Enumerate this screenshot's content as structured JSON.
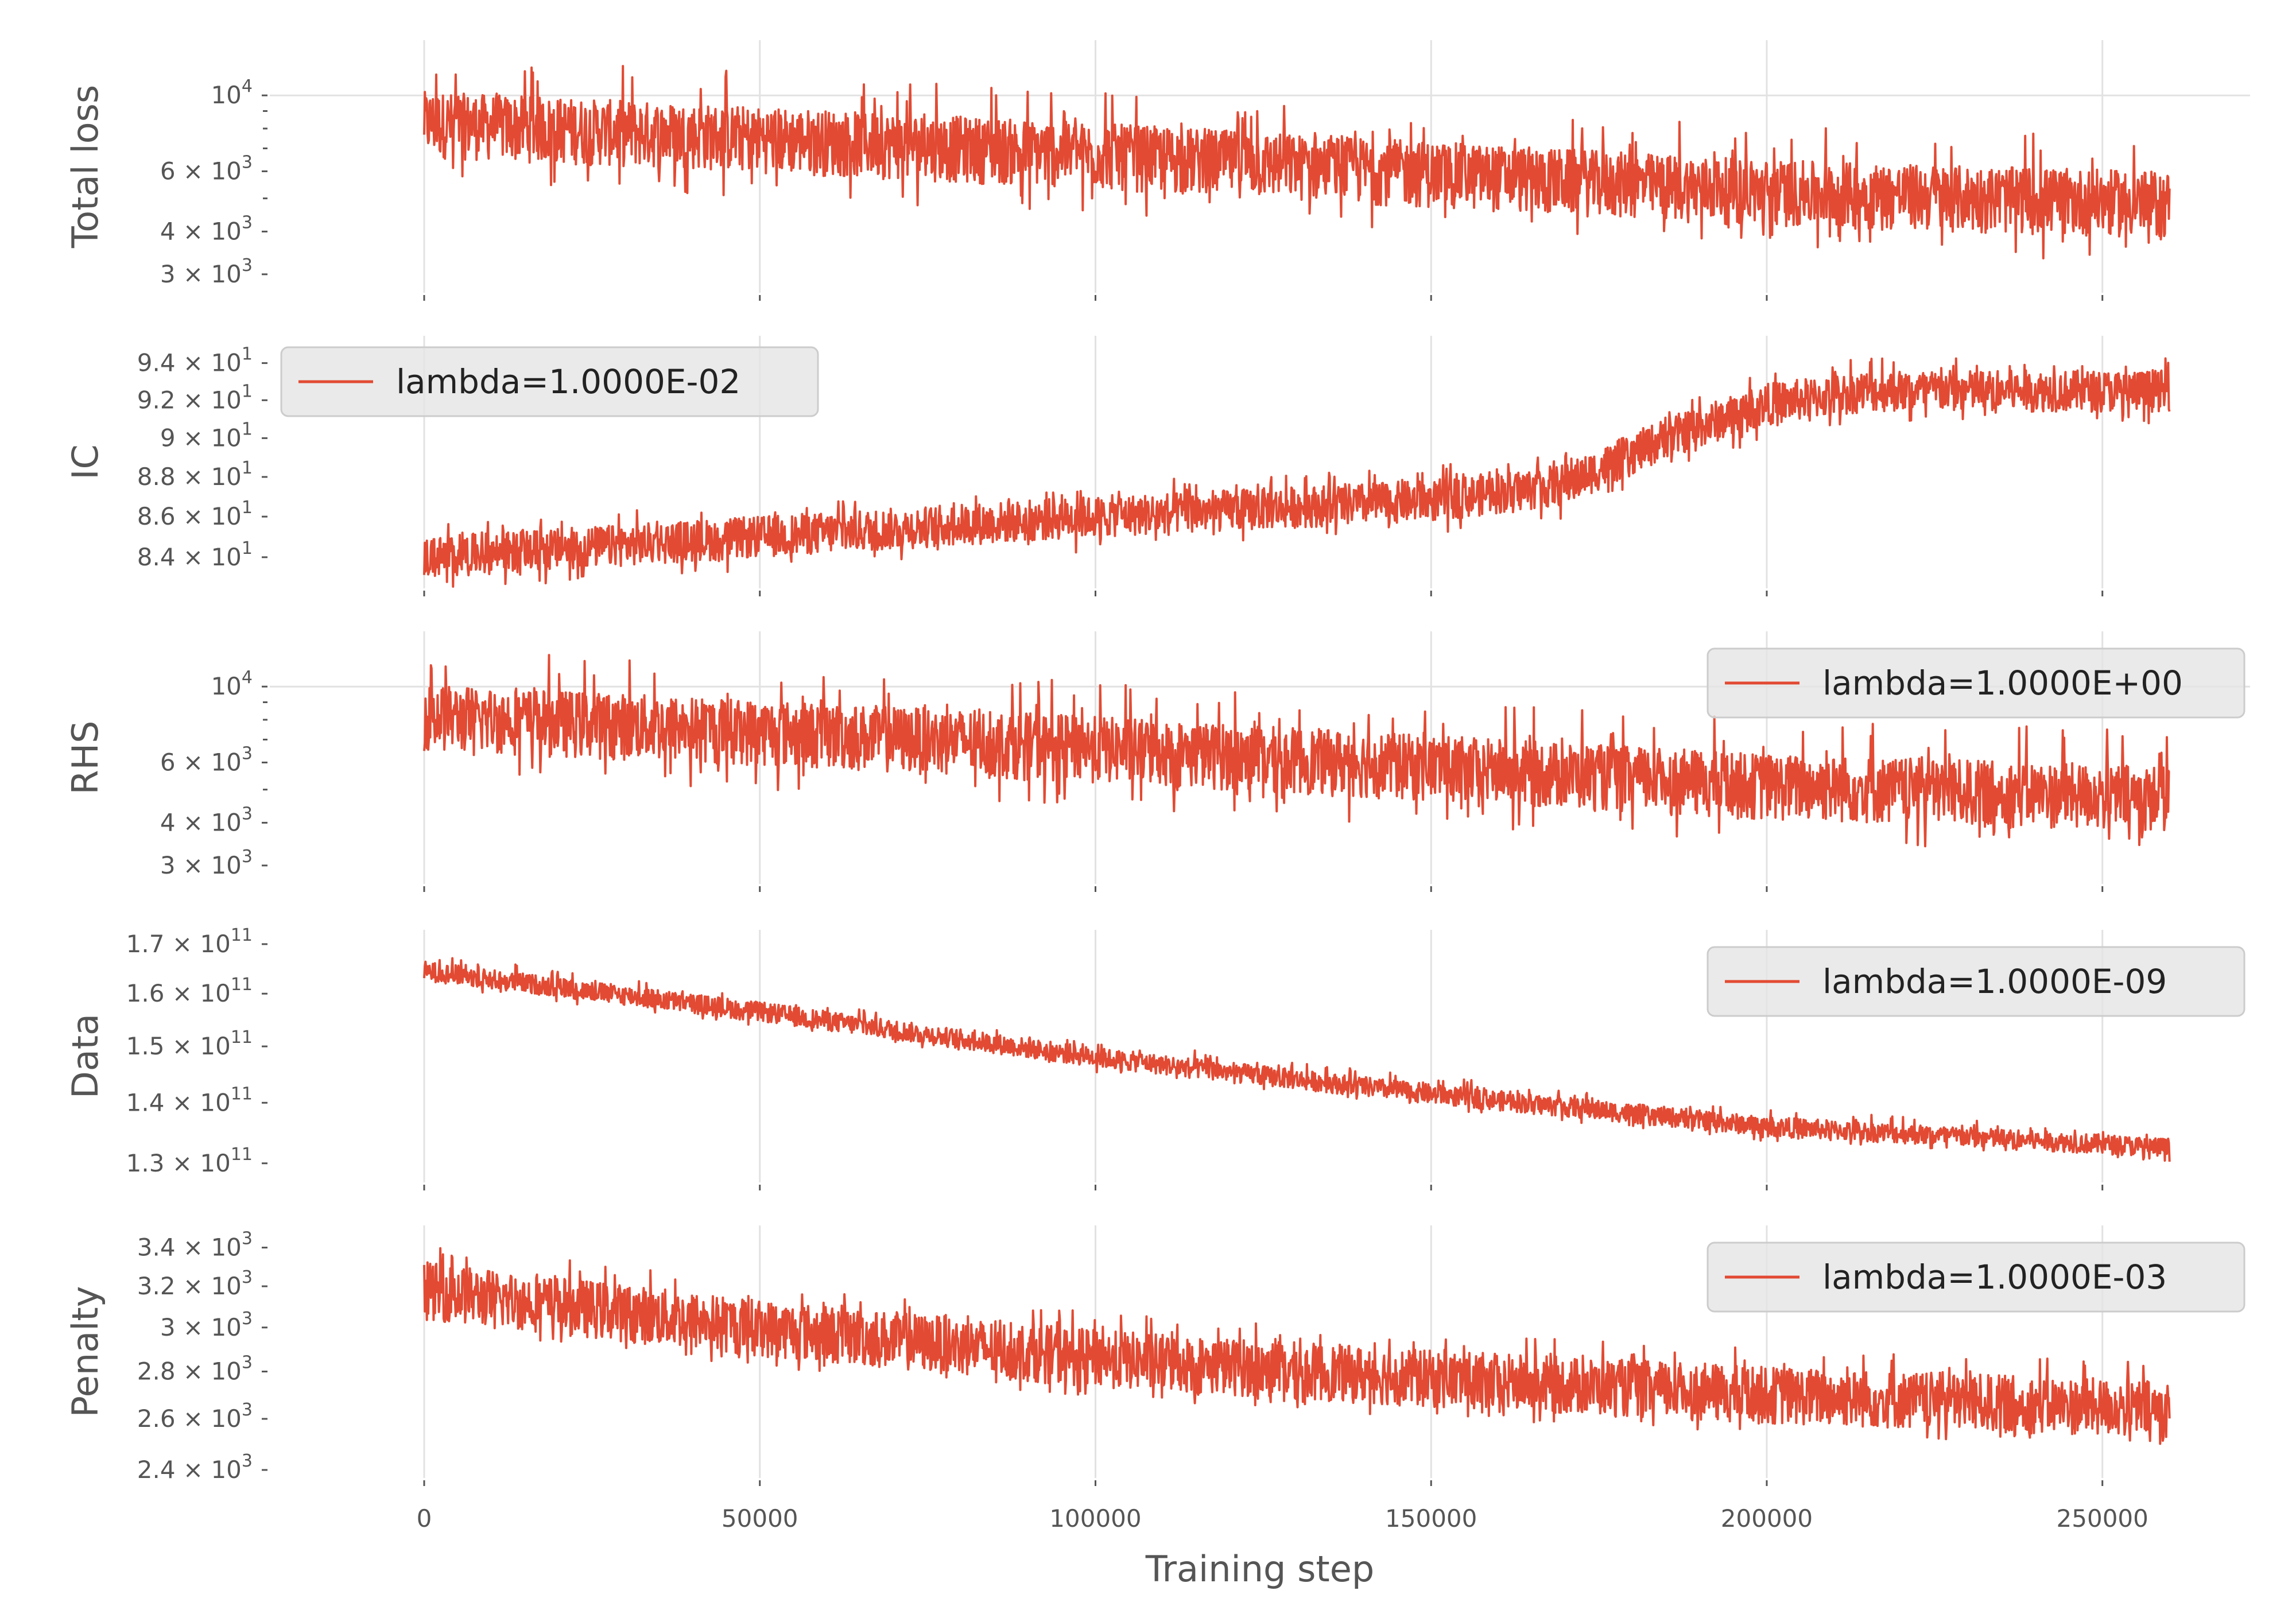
{
  "chart_data": {
    "type": "line",
    "layout": "5 stacked subplots sharing the x axis",
    "xlabel": "Training step",
    "xlim": [
      -23000,
      272000
    ],
    "xticks": [
      0,
      50000,
      100000,
      150000,
      200000,
      250000
    ],
    "xtick_labels": [
      "0",
      "50000",
      "100000",
      "150000",
      "200000",
      "250000"
    ],
    "total_steps": 260000,
    "series_color": "#E24A33",
    "grid": true,
    "subplots": [
      {
        "id": "total_loss",
        "ylabel": "Total loss",
        "yscale": "log",
        "ylim": [
          2650,
          14500
        ],
        "yticks": [
          {
            "value": 10000,
            "base": "10",
            "exp": "4",
            "mant": ""
          },
          {
            "value": 6000,
            "base": "10",
            "exp": "3",
            "mant": "6 × "
          },
          {
            "value": 4000,
            "base": "10",
            "exp": "3",
            "mant": "4 × "
          },
          {
            "value": 3000,
            "base": "10",
            "exp": "3",
            "mant": "3 × "
          }
        ],
        "minor_ticks": [
          5000,
          7000,
          8000,
          9000
        ],
        "legend": null,
        "trend": [
          [
            0,
            8400
          ],
          [
            50000,
            7600
          ],
          [
            100000,
            6800
          ],
          [
            150000,
            6000
          ],
          [
            200000,
            5300
          ],
          [
            260000,
            4900
          ]
        ],
        "band": {
          "low": 0.78,
          "high": 1.22,
          "spike_high": 1.55,
          "spike_low": 0.66
        }
      },
      {
        "id": "ic",
        "ylabel": "IC",
        "yscale": "log",
        "ylim": [
          82.5,
          95.5
        ],
        "yticks": [
          {
            "value": 94,
            "base": "10",
            "exp": "1",
            "mant": "9.4 × "
          },
          {
            "value": 92,
            "base": "10",
            "exp": "1",
            "mant": "9.2 × "
          },
          {
            "value": 90,
            "base": "10",
            "exp": "1",
            "mant": "9 × "
          },
          {
            "value": 88,
            "base": "10",
            "exp": "1",
            "mant": "8.8 × "
          },
          {
            "value": 86,
            "base": "10",
            "exp": "1",
            "mant": "8.6 × "
          },
          {
            "value": 84,
            "base": "10",
            "exp": "1",
            "mant": "8.4 × "
          }
        ],
        "minor_ticks": [],
        "legend": {
          "label": "lambda=1.0000E-02",
          "position": "upper left"
        },
        "trend": [
          [
            0,
            84.0
          ],
          [
            50000,
            85.0
          ],
          [
            100000,
            86.0
          ],
          [
            150000,
            86.8
          ],
          [
            170000,
            87.6
          ],
          [
            185000,
            90.0
          ],
          [
            200000,
            91.8
          ],
          [
            215000,
            92.5
          ],
          [
            260000,
            92.5
          ]
        ],
        "band": {
          "low": 0.988,
          "high": 1.012,
          "spike_high": 1.02,
          "spike_low": 0.98
        }
      },
      {
        "id": "rhs",
        "ylabel": "RHS",
        "yscale": "log",
        "ylim": [
          2650,
          14500
        ],
        "yticks": [
          {
            "value": 10000,
            "base": "10",
            "exp": "4",
            "mant": ""
          },
          {
            "value": 6000,
            "base": "10",
            "exp": "3",
            "mant": "6 × "
          },
          {
            "value": 4000,
            "base": "10",
            "exp": "3",
            "mant": "4 × "
          },
          {
            "value": 3000,
            "base": "10",
            "exp": "3",
            "mant": "3 × "
          }
        ],
        "minor_ticks": [
          5000,
          7000,
          8000,
          9000
        ],
        "legend": {
          "label": "lambda=1.0000E+00",
          "position": "upper right"
        },
        "trend": [
          [
            0,
            8300
          ],
          [
            50000,
            7500
          ],
          [
            100000,
            6700
          ],
          [
            150000,
            5900
          ],
          [
            200000,
            5200
          ],
          [
            260000,
            4800
          ]
        ],
        "band": {
          "low": 0.78,
          "high": 1.22,
          "spike_high": 1.55,
          "spike_low": 0.66
        }
      },
      {
        "id": "data",
        "ylabel": "Data",
        "yscale": "log",
        "ylim": [
          127000000000.0,
          173000000000.0
        ],
        "yticks": [
          {
            "value": 170000000000.0,
            "base": "10",
            "exp": "11",
            "mant": "1.7 × "
          },
          {
            "value": 160000000000.0,
            "base": "10",
            "exp": "11",
            "mant": "1.6 × "
          },
          {
            "value": 150000000000.0,
            "base": "10",
            "exp": "11",
            "mant": "1.5 × "
          },
          {
            "value": 140000000000.0,
            "base": "10",
            "exp": "11",
            "mant": "1.4 × "
          },
          {
            "value": 130000000000.0,
            "base": "10",
            "exp": "11",
            "mant": "1.3 × "
          }
        ],
        "minor_ticks": [],
        "legend": {
          "label": "lambda=1.0000E-09",
          "position": "upper right"
        },
        "trend": [
          [
            0,
            164500000000.0
          ],
          [
            50000,
            156500000000.0
          ],
          [
            100000,
            148000000000.0
          ],
          [
            150000,
            141500000000.0
          ],
          [
            200000,
            136000000000.0
          ],
          [
            260000,
            132500000000.0
          ]
        ],
        "band": {
          "low": 0.988,
          "high": 1.012,
          "spike_high": 1.022,
          "spike_low": 0.982
        }
      },
      {
        "id": "penalty",
        "ylabel": "Penalty",
        "yscale": "log",
        "ylim": [
          2370,
          3520
        ],
        "yticks": [
          {
            "value": 3400,
            "base": "10",
            "exp": "3",
            "mant": "3.4 × "
          },
          {
            "value": 3200,
            "base": "10",
            "exp": "3",
            "mant": "3.2 × "
          },
          {
            "value": 3000,
            "base": "10",
            "exp": "3",
            "mant": "3 × "
          },
          {
            "value": 2800,
            "base": "10",
            "exp": "3",
            "mant": "2.8 × "
          },
          {
            "value": 2600,
            "base": "10",
            "exp": "3",
            "mant": "2.6 × "
          },
          {
            "value": 2400,
            "base": "10",
            "exp": "3",
            "mant": "2.4 × "
          }
        ],
        "minor_ticks": [],
        "legend": {
          "label": "lambda=1.0000E-03",
          "position": "upper right"
        },
        "trend": [
          [
            0,
            3180
          ],
          [
            50000,
            3000
          ],
          [
            100000,
            2860
          ],
          [
            150000,
            2770
          ],
          [
            200000,
            2700
          ],
          [
            260000,
            2640
          ]
        ],
        "band": {
          "low": 0.955,
          "high": 1.045,
          "spike_high": 1.075,
          "spike_low": 0.94
        }
      }
    ]
  }
}
